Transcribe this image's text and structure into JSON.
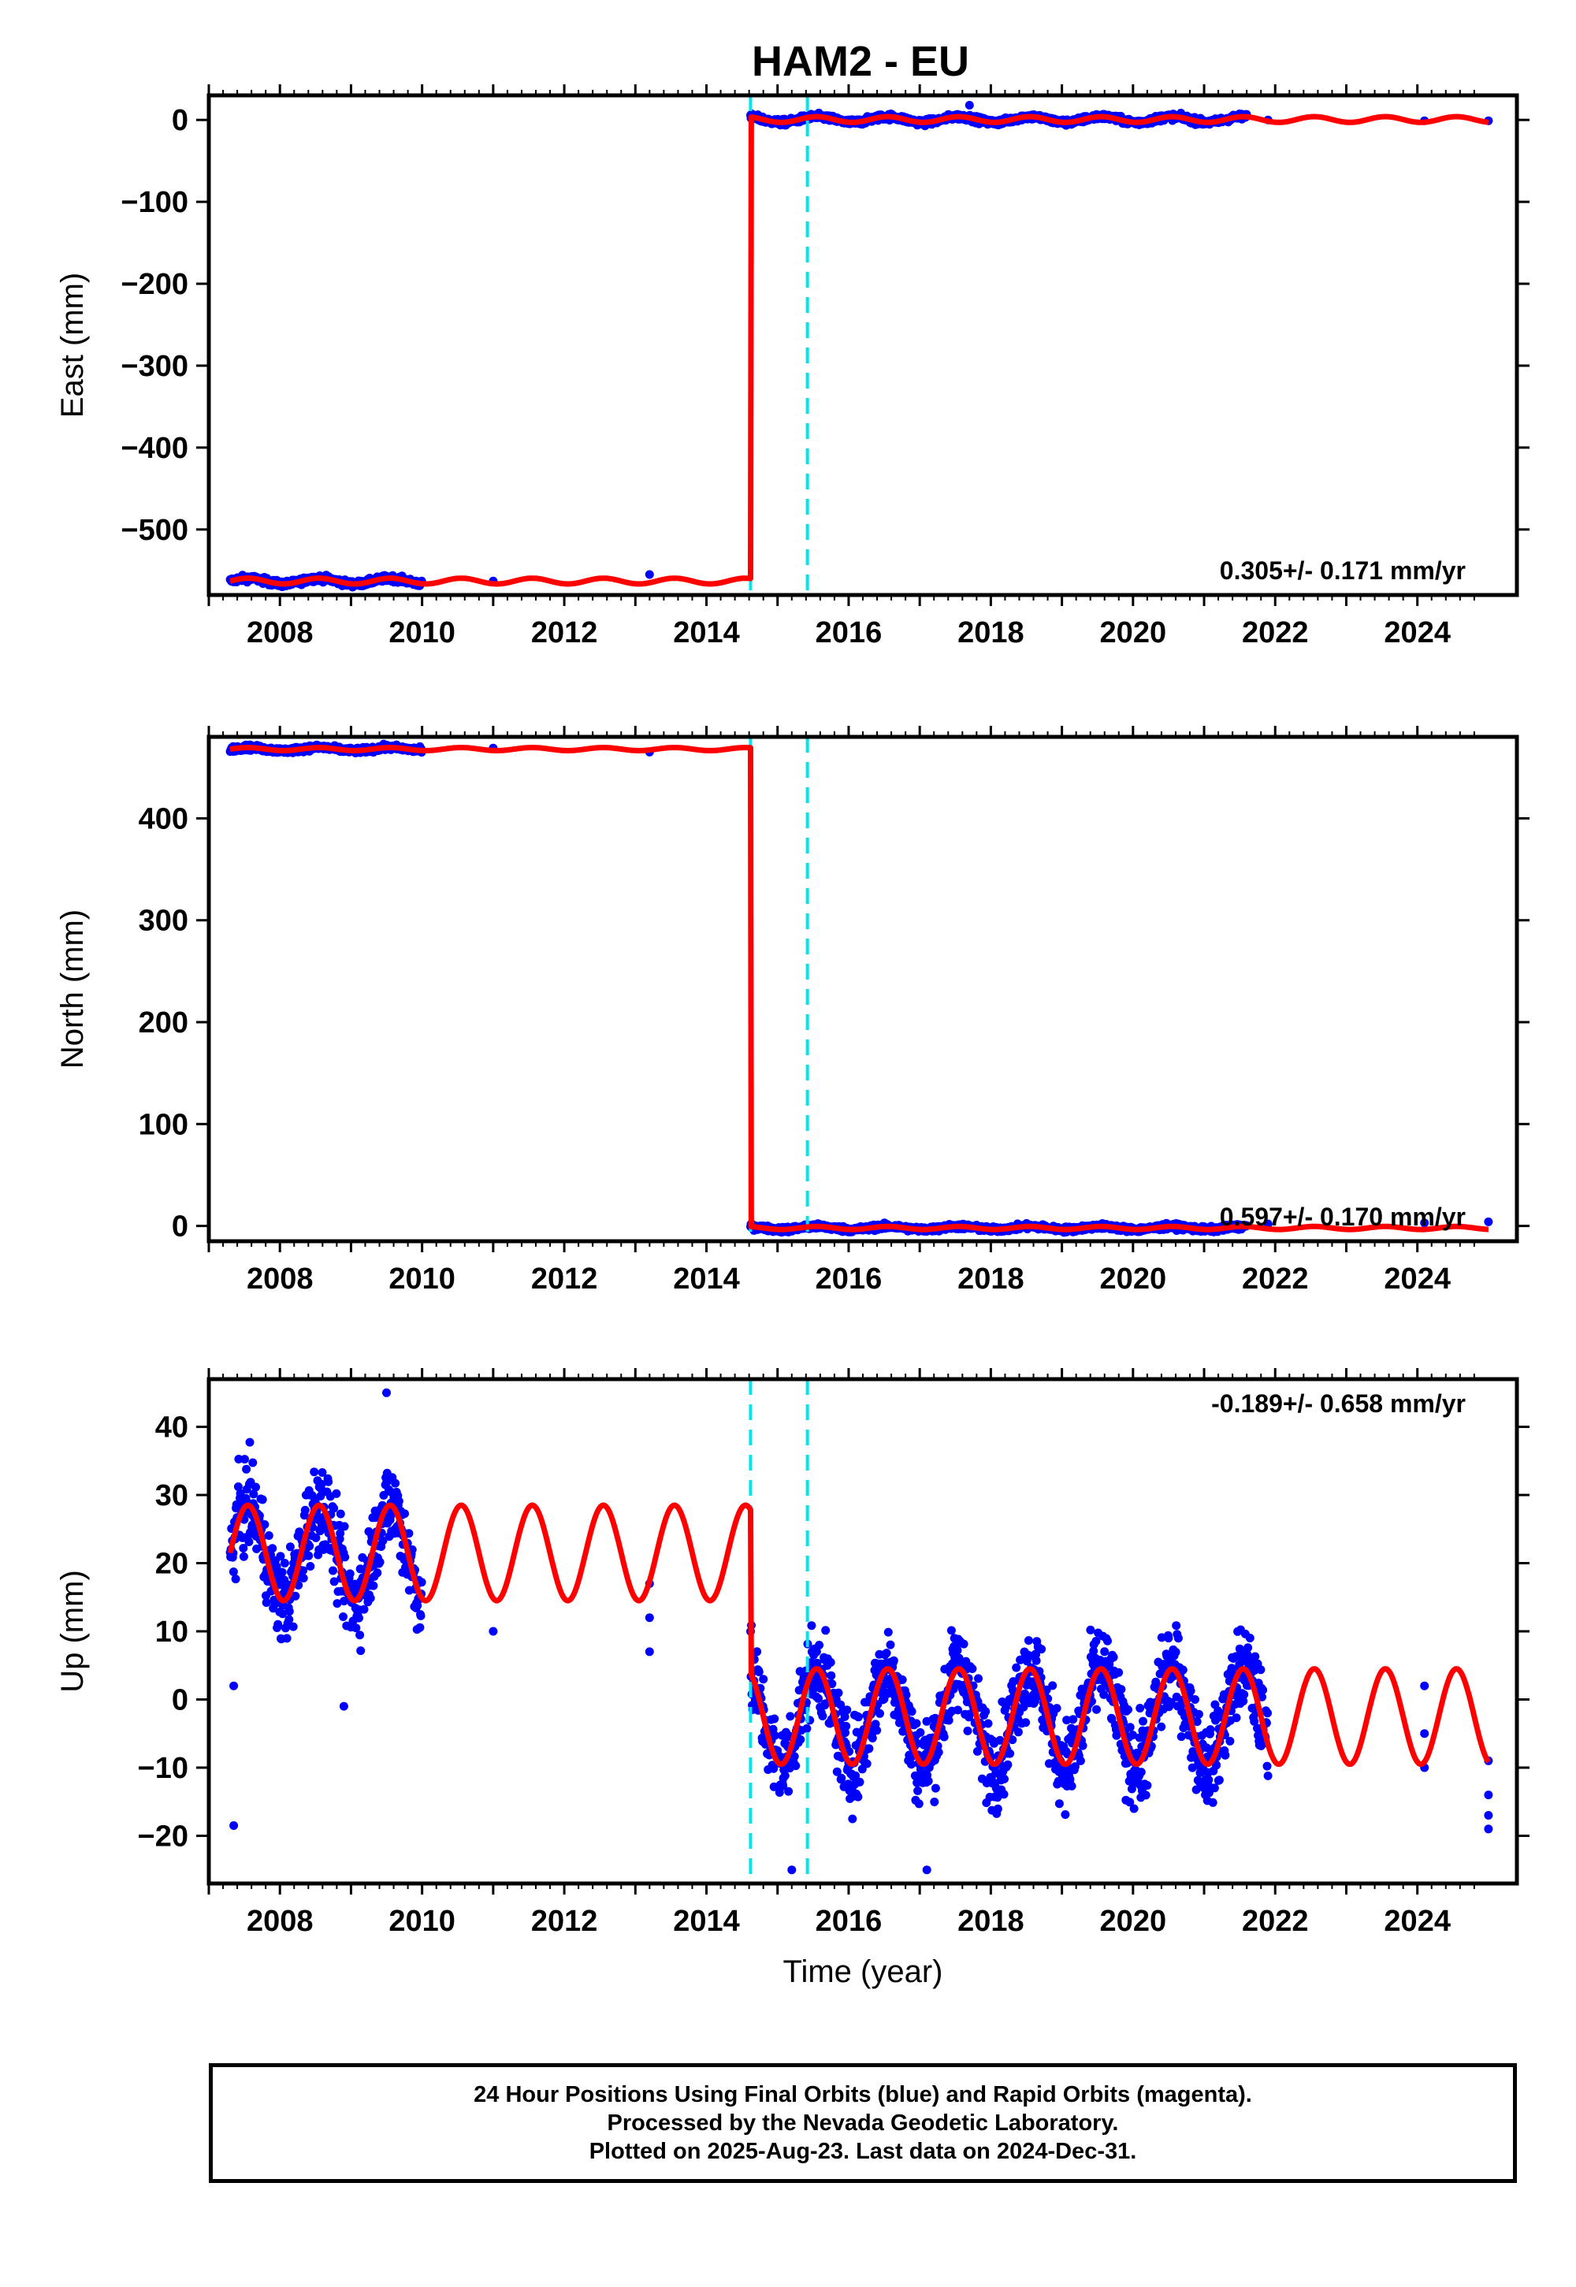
{
  "chart_data": [
    {
      "type": "scatter",
      "title": "HAM2 - EU",
      "xlabel": "",
      "ylabel": "East (mm)",
      "xlim": [
        2007.0,
        2025.4
      ],
      "ylim": [
        -580,
        30
      ],
      "xticks": [
        2008,
        2010,
        2012,
        2014,
        2016,
        2018,
        2020,
        2022,
        2024
      ],
      "yticks": [
        -500,
        -400,
        -300,
        -200,
        -100,
        0
      ],
      "ytick_labels": [
        "−500",
        "−400",
        "−300",
        "−200",
        "−100",
        "0"
      ],
      "annotation": "0.305+/- 0.171 mm/yr",
      "offset_lines": [
        2014.62,
        2015.42
      ],
      "segments": [
        {
          "start": 2007.3,
          "end": 2014.62,
          "level": -563,
          "amp": 3.5
        },
        {
          "start": 2014.62,
          "end": 2025.0,
          "level": 0.5,
          "amp": 3.5
        }
      ],
      "gap": [
        2010.0,
        2014.62
      ],
      "gap_points": [
        [
          2011.0,
          -563
        ],
        [
          2013.2,
          -555
        ]
      ],
      "late_gap": [
        2021.6,
        2025.0
      ],
      "late_points": [
        [
          2021.9,
          0
        ],
        [
          2024.1,
          -1
        ],
        [
          2025.0,
          -1
        ]
      ],
      "outliers": [
        [
          2017.7,
          18
        ]
      ],
      "noise": 3.5,
      "grid": false,
      "series": [
        {
          "name": "",
          "kind": "daily positions",
          "color": "#0000ff"
        },
        {
          "name": "",
          "kind": "model fit",
          "color": "#ff0000"
        }
      ]
    },
    {
      "type": "scatter",
      "title": "",
      "xlabel": "",
      "ylabel": "North (mm)",
      "xlim": [
        2007.0,
        2025.4
      ],
      "ylim": [
        -15,
        480
      ],
      "xticks": [
        2008,
        2010,
        2012,
        2014,
        2016,
        2018,
        2020,
        2022,
        2024
      ],
      "yticks": [
        0,
        100,
        200,
        300,
        400
      ],
      "ytick_labels": [
        "0",
        "100",
        "200",
        "300",
        "400"
      ],
      "annotation": "0.597+/- 0.170 mm/yr",
      "offset_lines": [
        2014.62,
        2015.42
      ],
      "segments": [
        {
          "start": 2007.3,
          "end": 2014.62,
          "level": 468,
          "amp": 1.5
        },
        {
          "start": 2014.62,
          "end": 2025.0,
          "level": -2,
          "amp": 1.5
        }
      ],
      "gap": [
        2010.0,
        2014.62
      ],
      "gap_points": [
        [
          2011.0,
          469
        ],
        [
          2013.2,
          465
        ]
      ],
      "late_gap": [
        2021.6,
        2025.0
      ],
      "late_points": [
        [
          2021.9,
          2
        ],
        [
          2024.1,
          3
        ],
        [
          2025.0,
          4
        ]
      ],
      "outliers": [],
      "noise": 2.5,
      "grid": false,
      "series": [
        {
          "name": "",
          "kind": "daily positions",
          "color": "#0000ff"
        },
        {
          "name": "",
          "kind": "model fit",
          "color": "#ff0000"
        }
      ]
    },
    {
      "type": "scatter",
      "title": "",
      "xlabel": "Time (year)",
      "ylabel": "Up (mm)",
      "xlim": [
        2007.0,
        2025.4
      ],
      "ylim": [
        -27,
        47
      ],
      "xticks": [
        2008,
        2010,
        2012,
        2014,
        2016,
        2018,
        2020,
        2022,
        2024
      ],
      "yticks": [
        -20,
        -10,
        0,
        10,
        20,
        30,
        40
      ],
      "ytick_labels": [
        "−20",
        "−10",
        "0",
        "10",
        "20",
        "30",
        "40"
      ],
      "annotation": "-0.189+/- 0.658 mm/yr",
      "offset_lines": [
        2014.62,
        2015.42
      ],
      "segments": [
        {
          "start": 2007.3,
          "end": 2014.62,
          "level": 21.5,
          "amp": 7
        },
        {
          "start": 2014.62,
          "end": 2025.0,
          "level": -2.5,
          "amp": 7
        }
      ],
      "gap": [
        2010.0,
        2014.62
      ],
      "gap_points": [
        [
          2011.0,
          10
        ],
        [
          2013.2,
          17
        ],
        [
          2013.2,
          12
        ],
        [
          2013.2,
          7
        ]
      ],
      "late_gap": [
        2021.9,
        2025.0
      ],
      "late_points": [
        [
          2024.1,
          2
        ],
        [
          2024.1,
          -5
        ],
        [
          2024.1,
          -10
        ],
        [
          2025.0,
          -9
        ],
        [
          2025.0,
          -14
        ],
        [
          2025.0,
          -17
        ],
        [
          2025.0,
          -19
        ]
      ],
      "outliers": [
        [
          2007.35,
          -18.5
        ],
        [
          2009.5,
          45
        ],
        [
          2007.35,
          2
        ],
        [
          2008.9,
          -1
        ],
        [
          2017.1,
          -25
        ],
        [
          2015.2,
          -25
        ]
      ],
      "noise": 6,
      "grid": false,
      "series": [
        {
          "name": "",
          "kind": "daily positions",
          "color": "#0000ff"
        },
        {
          "name": "",
          "kind": "model fit",
          "color": "#ff0000"
        }
      ]
    }
  ],
  "caption": {
    "line1": "24 Hour Positions Using Final Orbits (blue) and Rapid Orbits (magenta).",
    "line2": "Processed by the Nevada Geodetic Laboratory.",
    "line3": "Plotted on 2025-Aug-23. Last data on 2024-Dec-31."
  },
  "colors": {
    "points": "#0000ff",
    "model": "#ff0000",
    "offset_line": "#00e5ee",
    "frame": "#000000"
  }
}
